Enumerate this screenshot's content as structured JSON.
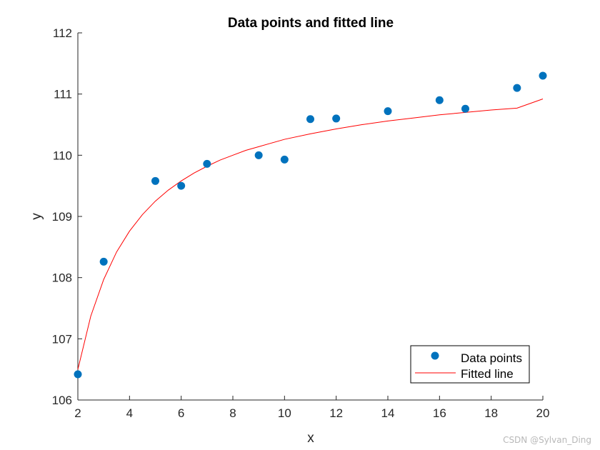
{
  "chart_data": {
    "type": "scatter",
    "title": "Data points and fitted line",
    "xlabel": "x",
    "ylabel": "y",
    "xlim": [
      2,
      20
    ],
    "ylim": [
      106,
      112
    ],
    "xticks": [
      2,
      4,
      6,
      8,
      10,
      12,
      14,
      16,
      18,
      20
    ],
    "yticks": [
      106,
      107,
      108,
      109,
      110,
      111,
      112
    ],
    "grid": false,
    "legend_position": "bottom-right",
    "series": [
      {
        "name": "Data points",
        "kind": "scatter",
        "color": "#0072bd",
        "x": [
          2,
          3,
          5,
          6,
          7,
          9,
          10,
          11,
          12,
          14,
          16,
          17,
          19,
          20
        ],
        "y": [
          106.42,
          108.26,
          109.58,
          109.5,
          109.86,
          110.0,
          109.93,
          110.59,
          110.6,
          110.72,
          110.9,
          110.76,
          111.1,
          111.3
        ]
      },
      {
        "name": "Fitted line",
        "kind": "line",
        "color": "#ff0000",
        "x": [
          2,
          2.5,
          3,
          3.5,
          4,
          4.5,
          5,
          5.5,
          6,
          6.5,
          7,
          7.5,
          8,
          8.5,
          9,
          9.5,
          10,
          11,
          12,
          13,
          14,
          15,
          16,
          17,
          18,
          19,
          20
        ],
        "y": [
          106.5,
          107.37,
          107.97,
          108.42,
          108.76,
          109.03,
          109.25,
          109.43,
          109.58,
          109.71,
          109.82,
          109.92,
          110.0,
          110.08,
          110.14,
          110.2,
          110.26,
          110.35,
          110.43,
          110.5,
          110.56,
          110.61,
          110.66,
          110.7,
          110.74,
          110.77,
          110.92
        ]
      }
    ]
  },
  "watermark": "CSDN @Sylvan_Ding"
}
